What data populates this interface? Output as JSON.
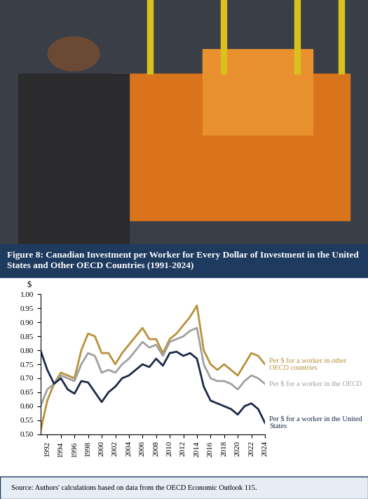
{
  "chart_data": {
    "type": "line",
    "title": "Figure 8: Canadian Investment per Worker for Every Dollar of Investment in the United States and Other OECD Countries (1991-2024)",
    "y_label": "$",
    "note": "Source: Authors' calculations based on data from the OECD Economic Outlook 115.",
    "x": [
      1991,
      1992,
      1993,
      1994,
      1995,
      1996,
      1997,
      1998,
      1999,
      2000,
      2001,
      2002,
      2003,
      2004,
      2005,
      2006,
      2007,
      2008,
      2009,
      2010,
      2011,
      2012,
      2013,
      2014,
      2015,
      2016,
      2017,
      2018,
      2019,
      2020,
      2021,
      2022,
      2023,
      2024
    ],
    "series": [
      {
        "name": "Per $ for a worker in other OECD countries",
        "color": "#b8913a",
        "values": [
          0.51,
          0.62,
          0.68,
          0.72,
          0.71,
          0.7,
          0.8,
          0.86,
          0.85,
          0.79,
          0.79,
          0.75,
          0.79,
          0.82,
          0.85,
          0.88,
          0.84,
          0.84,
          0.79,
          0.84,
          0.86,
          0.89,
          0.92,
          0.96,
          0.8,
          0.75,
          0.73,
          0.75,
          0.73,
          0.71,
          0.75,
          0.79,
          0.78,
          0.75
        ]
      },
      {
        "name": "Per $ for a worker in the OECD",
        "color": "#a0a0a0",
        "values": [
          0.6,
          0.66,
          0.68,
          0.71,
          0.7,
          0.69,
          0.75,
          0.79,
          0.78,
          0.72,
          0.73,
          0.72,
          0.75,
          0.77,
          0.8,
          0.83,
          0.81,
          0.82,
          0.78,
          0.83,
          0.84,
          0.85,
          0.87,
          0.88,
          0.75,
          0.7,
          0.69,
          0.69,
          0.68,
          0.66,
          0.69,
          0.71,
          0.7,
          0.68
        ]
      },
      {
        "name": "Per $ for a worker in the United States",
        "color": "#1c2a48",
        "values": [
          0.8,
          0.73,
          0.68,
          0.7,
          0.66,
          0.645,
          0.69,
          0.685,
          0.65,
          0.615,
          0.65,
          0.67,
          0.7,
          0.71,
          0.73,
          0.75,
          0.74,
          0.77,
          0.745,
          0.79,
          0.795,
          0.78,
          0.79,
          0.77,
          0.67,
          0.62,
          0.61,
          0.6,
          0.59,
          0.57,
          0.6,
          0.61,
          0.59,
          0.54
        ]
      }
    ],
    "xlim": [
      1991,
      2024
    ],
    "xticks": [
      1992,
      1994,
      1996,
      1998,
      2000,
      2002,
      2004,
      2006,
      2008,
      2010,
      2012,
      2014,
      2016,
      2018,
      2020,
      2022,
      2024
    ],
    "ylim": [
      0.5,
      1.0
    ],
    "yticks": [
      {
        "value": 0.5,
        "label": "0.50"
      },
      {
        "value": 0.55,
        "label": "0.55"
      },
      {
        "value": 0.6,
        "label": "0.60"
      },
      {
        "value": 0.65,
        "label": "0.65"
      },
      {
        "value": 0.7,
        "label": "0.70"
      },
      {
        "value": 0.75,
        "label": "0.75"
      },
      {
        "value": 0.8,
        "label": "0.80"
      },
      {
        "value": 0.85,
        "label": "0.85"
      },
      {
        "value": 0.9,
        "label": "0.90"
      },
      {
        "value": 0.95,
        "label": "0.95"
      },
      {
        "value": 1.0,
        "label": "1.00"
      }
    ],
    "grid": false
  }
}
